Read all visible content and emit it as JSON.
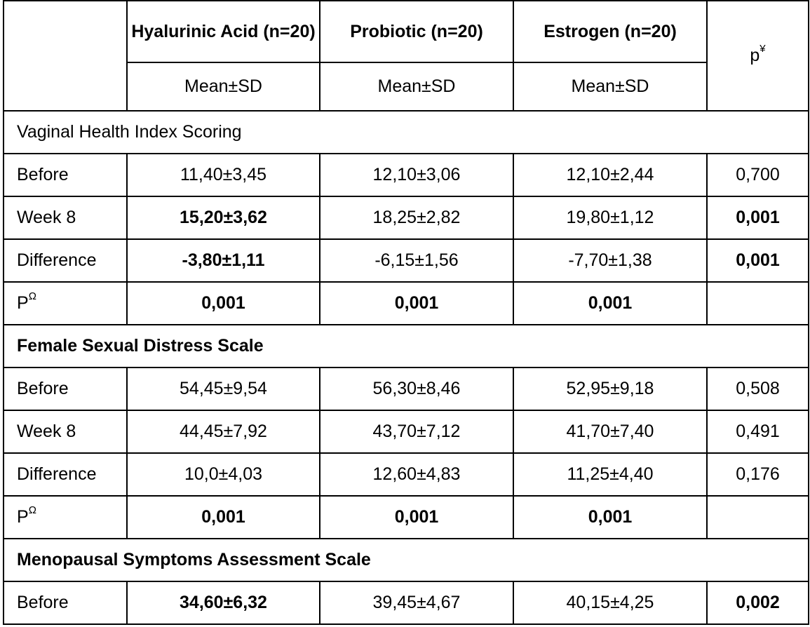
{
  "header": {
    "columns": [
      "Hyalurinic Acid (n=20)",
      "Probiotic (n=20)",
      "Estrogen (n=20)"
    ],
    "subheader": [
      "Mean±SD",
      "Mean±SD",
      "Mean±SD"
    ],
    "p_column": {
      "base": "p",
      "sup": "¥"
    }
  },
  "sections": [
    {
      "title": "Vaginal Health Index Scoring",
      "title_bold": false,
      "rows": [
        {
          "label": "Before",
          "cells": [
            "11,40±3,45",
            "12,10±3,06",
            "12,10±2,44"
          ],
          "p": "0,700"
        },
        {
          "label": "Week 8",
          "cells": [
            "15,20±3,62",
            "18,25±2,82",
            "19,80±1,12"
          ],
          "p": "0,001"
        },
        {
          "label": "Difference",
          "cells": [
            "-3,80±1,11",
            "-6,15±1,56",
            "-7,70±1,38"
          ],
          "p": "0,001"
        },
        {
          "label": "P",
          "label_sup": "Ω",
          "cells": [
            "0,001",
            "0,001",
            "0,001"
          ],
          "p": ""
        }
      ]
    },
    {
      "title": "Female Sexual Distress Scale",
      "title_bold": true,
      "rows": [
        {
          "label": "Before",
          "cells": [
            "54,45±9,54",
            "56,30±8,46",
            "52,95±9,18"
          ],
          "p": "0,508"
        },
        {
          "label": "Week 8",
          "cells": [
            "44,45±7,92",
            "43,70±7,12",
            "41,70±7,40"
          ],
          "p": "0,491"
        },
        {
          "label": "Difference",
          "cells": [
            "10,0±4,03",
            "12,60±4,83",
            "11,25±4,40"
          ],
          "p": "0,176"
        },
        {
          "label": "P",
          "label_sup": "Ω",
          "cells": [
            "0,001",
            "0,001",
            "0,001"
          ],
          "p": ""
        }
      ]
    },
    {
      "title": "Menopausal Symptoms Assessment Scale",
      "title_bold": true,
      "rows": [
        {
          "label": "Before",
          "cells": [
            "34,60±6,32",
            "39,45±4,67",
            "40,15±4,25"
          ],
          "p": "0,002"
        }
      ]
    }
  ]
}
